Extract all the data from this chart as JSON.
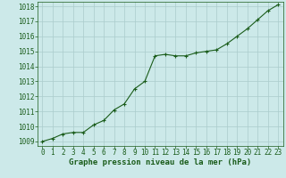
{
  "x": [
    0,
    1,
    2,
    3,
    4,
    5,
    6,
    7,
    8,
    9,
    10,
    11,
    12,
    13,
    14,
    15,
    16,
    17,
    18,
    19,
    20,
    21,
    22,
    23
  ],
  "y": [
    1009.0,
    1009.2,
    1009.5,
    1009.6,
    1009.6,
    1010.1,
    1010.4,
    1011.1,
    1011.5,
    1012.5,
    1013.0,
    1014.7,
    1014.8,
    1014.7,
    1014.7,
    1014.9,
    1015.0,
    1015.1,
    1015.5,
    1016.0,
    1016.5,
    1017.1,
    1017.7,
    1018.1
  ],
  "line_color": "#1a5c1a",
  "marker": "+",
  "marker_size": 3,
  "bg_color": "#cce9e9",
  "grid_color": "#aacccc",
  "xlabel": "Graphe pression niveau de la mer (hPa)",
  "xlabel_color": "#1a5c1a",
  "tick_color": "#1a5c1a",
  "ylim": [
    1008.7,
    1018.3
  ],
  "yticks": [
    1009,
    1010,
    1011,
    1012,
    1013,
    1014,
    1015,
    1016,
    1017,
    1018
  ],
  "xlim": [
    -0.5,
    23.5
  ],
  "xticks": [
    0,
    1,
    2,
    3,
    4,
    5,
    6,
    7,
    8,
    9,
    10,
    11,
    12,
    13,
    14,
    15,
    16,
    17,
    18,
    19,
    20,
    21,
    22,
    23
  ],
  "xlabel_fontsize": 6.5,
  "tick_fontsize": 5.5,
  "line_width": 0.8
}
